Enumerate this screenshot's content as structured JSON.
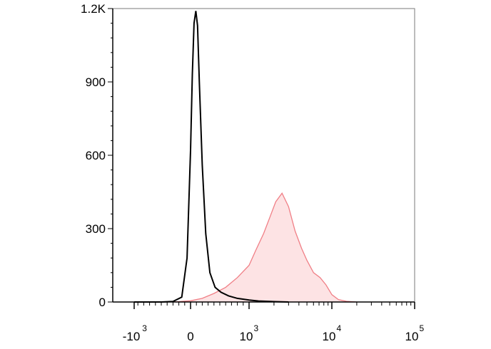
{
  "chart_data": {
    "type": "area",
    "title": "",
    "xlabel": "",
    "ylabel": "",
    "x_scale": "biexponential",
    "ylim": [
      0,
      1200
    ],
    "y_ticks": [
      {
        "value": 0,
        "label": "0"
      },
      {
        "value": 300,
        "label": "300"
      },
      {
        "value": 600,
        "label": "600"
      },
      {
        "value": 900,
        "label": "900"
      },
      {
        "value": 1200,
        "label": "1.2K"
      }
    ],
    "x_ticks": [
      {
        "value": -1000,
        "base": "-10",
        "exp": "3"
      },
      {
        "value": 0,
        "base": "0",
        "exp": ""
      },
      {
        "value": 1000,
        "base": "10",
        "exp": "3"
      },
      {
        "value": 10000,
        "base": "10",
        "exp": "4"
      },
      {
        "value": 100000,
        "base": "10",
        "exp": "5"
      }
    ],
    "grid": false,
    "legend": "none",
    "colors": {
      "control_line": "#000000",
      "sample_line": "#f07f86",
      "sample_fill": "#fde3e4",
      "axis": "#000000"
    },
    "series": [
      {
        "style": "line",
        "color": "#000000",
        "x": [
          -1000,
          -500,
          -300,
          -150,
          -60,
          0,
          30,
          60,
          90,
          120,
          150,
          200,
          260,
          330,
          420,
          520,
          650,
          800,
          1000,
          1300,
          1800,
          3000
        ],
        "y": [
          0,
          0,
          2,
          20,
          180,
          620,
          930,
          1140,
          1190,
          1130,
          900,
          560,
          280,
          120,
          60,
          40,
          25,
          15,
          8,
          4,
          2,
          0
        ]
      },
      {
        "style": "area",
        "color": "#f07f86",
        "x": [
          -300,
          0,
          200,
          400,
          600,
          800,
          1000,
          1200,
          1500,
          1800,
          2100,
          2500,
          3000,
          3600,
          4300,
          5000,
          6000,
          7200,
          8500,
          10000,
          12000,
          15000,
          20000
        ],
        "y": [
          0,
          5,
          15,
          35,
          60,
          100,
          150,
          210,
          280,
          350,
          410,
          445,
          390,
          290,
          220,
          170,
          120,
          100,
          70,
          30,
          10,
          3,
          0
        ]
      }
    ]
  }
}
